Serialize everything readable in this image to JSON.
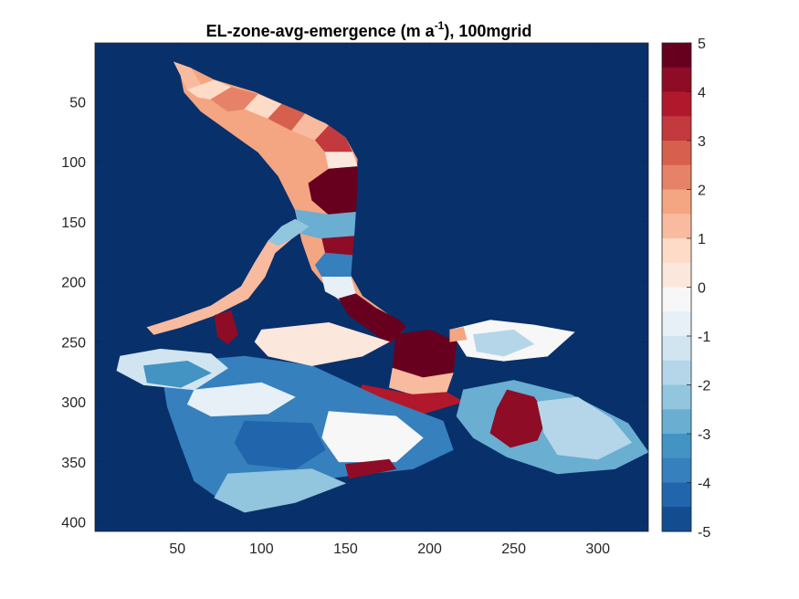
{
  "chart_data": {
    "type": "heatmap",
    "title": {
      "main": "EL-zone-avg-emergence (m a",
      "superscript": "-1",
      "suffix": "), 100mgrid"
    },
    "xlabel": "",
    "ylabel": "",
    "xlim": [
      1,
      330
    ],
    "ylim": [
      408,
      1
    ],
    "y_direction": "reverse",
    "x_ticks": [
      50,
      100,
      150,
      200,
      250,
      300
    ],
    "x_tick_labels": [
      "50",
      "100",
      "150",
      "200",
      "250",
      "300"
    ],
    "y_ticks": [
      50,
      100,
      150,
      200,
      250,
      300,
      350,
      400
    ],
    "y_tick_labels": [
      "50",
      "100",
      "150",
      "200",
      "250",
      "300",
      "350",
      "400"
    ],
    "background_value": -5,
    "colorbar": {
      "min": -5,
      "max": 5,
      "levels": 20,
      "ticks": [
        5,
        4,
        3,
        2,
        1,
        0,
        -1,
        -2,
        -3,
        -4,
        -5
      ],
      "tick_labels": [
        "5",
        "4",
        "3",
        "2",
        "1",
        "0",
        "-1",
        "-2",
        "-3",
        "-4",
        "-5"
      ],
      "colors": [
        "#08306b",
        "#134c8f",
        "#2166ac",
        "#3680bd",
        "#4393c3",
        "#6aaed2",
        "#92c5de",
        "#b5d6e8",
        "#d1e5f0",
        "#e6f0f6",
        "#f7f7f7",
        "#fbe7dc",
        "#fddbc7",
        "#f8bb9f",
        "#f4a582",
        "#e58267",
        "#d6604d",
        "#c2393e",
        "#b2182b",
        "#8e0c25",
        "#67001f"
      ]
    },
    "zones": [
      {
        "name": "upper-accumulation",
        "value": 2.0,
        "points": [
          [
            48,
            17
          ],
          [
            58,
            22
          ],
          [
            72,
            32
          ],
          [
            96,
            42
          ],
          [
            118,
            56
          ],
          [
            138,
            68
          ],
          [
            150,
            80
          ],
          [
            157,
            98
          ],
          [
            156,
            118
          ],
          [
            155,
            142
          ],
          [
            154,
            168
          ],
          [
            152,
            192
          ],
          [
            160,
            212
          ],
          [
            176,
            228
          ],
          [
            186,
            238
          ],
          [
            176,
            252
          ],
          [
            158,
            230
          ],
          [
            142,
            210
          ],
          [
            130,
            190
          ],
          [
            124,
            166
          ],
          [
            120,
            140
          ],
          [
            110,
            112
          ],
          [
            98,
            92
          ],
          [
            80,
            74
          ],
          [
            64,
            58
          ],
          [
            54,
            42
          ],
          [
            52,
            28
          ]
        ]
      },
      {
        "name": "upper-band-1",
        "value": 1.5,
        "points": [
          [
            48,
            17
          ],
          [
            58,
            22
          ],
          [
            64,
            36
          ],
          [
            56,
            40
          ],
          [
            52,
            28
          ]
        ]
      },
      {
        "name": "upper-band-2",
        "value": 1.2,
        "points": [
          [
            56,
            40
          ],
          [
            72,
            32
          ],
          [
            82,
            38
          ],
          [
            70,
            48
          ],
          [
            62,
            46
          ]
        ]
      },
      {
        "name": "upper-band-3",
        "value": 2.5,
        "points": [
          [
            70,
            48
          ],
          [
            82,
            38
          ],
          [
            98,
            44
          ],
          [
            90,
            56
          ],
          [
            80,
            58
          ]
        ]
      },
      {
        "name": "upper-band-4",
        "value": 1.0,
        "points": [
          [
            90,
            56
          ],
          [
            98,
            44
          ],
          [
            112,
            52
          ],
          [
            104,
            64
          ]
        ]
      },
      {
        "name": "upper-band-5",
        "value": 3.0,
        "points": [
          [
            104,
            64
          ],
          [
            112,
            52
          ],
          [
            126,
            60
          ],
          [
            118,
            74
          ]
        ]
      },
      {
        "name": "upper-band-6",
        "value": 1.5,
        "points": [
          [
            118,
            74
          ],
          [
            126,
            60
          ],
          [
            140,
            70
          ],
          [
            132,
            82
          ]
        ]
      },
      {
        "name": "upper-band-7",
        "value": 3.5,
        "points": [
          [
            132,
            82
          ],
          [
            140,
            70
          ],
          [
            150,
            80
          ],
          [
            154,
            92
          ],
          [
            138,
            92
          ]
        ]
      },
      {
        "name": "upper-band-8",
        "value": 0.5,
        "points": [
          [
            138,
            92
          ],
          [
            154,
            92
          ],
          [
            157,
            104
          ],
          [
            140,
            106
          ]
        ]
      },
      {
        "name": "trunk-red",
        "value": 5.0,
        "points": [
          [
            140,
            106
          ],
          [
            157,
            104
          ],
          [
            157,
            120
          ],
          [
            156,
            142
          ],
          [
            140,
            144
          ],
          [
            130,
            132
          ],
          [
            128,
            118
          ]
        ]
      },
      {
        "name": "trunk-blue-1",
        "value": -2.5,
        "points": [
          [
            120,
            140
          ],
          [
            140,
            144
          ],
          [
            156,
            142
          ],
          [
            155,
            162
          ],
          [
            136,
            164
          ],
          [
            124,
            160
          ]
        ]
      },
      {
        "name": "trunk-band-red",
        "value": 4.5,
        "points": [
          [
            136,
            164
          ],
          [
            155,
            162
          ],
          [
            154,
            178
          ],
          [
            138,
            176
          ]
        ]
      },
      {
        "name": "trunk-blue-2",
        "value": -3.5,
        "points": [
          [
            138,
            176
          ],
          [
            154,
            178
          ],
          [
            153,
            196
          ],
          [
            136,
            196
          ],
          [
            132,
            186
          ]
        ]
      },
      {
        "name": "trunk-light",
        "value": -0.5,
        "points": [
          [
            136,
            196
          ],
          [
            153,
            196
          ],
          [
            156,
            210
          ],
          [
            146,
            214
          ],
          [
            138,
            208
          ]
        ]
      },
      {
        "name": "snout-red",
        "value": 5.0,
        "points": [
          [
            146,
            214
          ],
          [
            156,
            210
          ],
          [
            168,
            222
          ],
          [
            182,
            232
          ],
          [
            186,
            238
          ],
          [
            176,
            252
          ],
          [
            164,
            240
          ],
          [
            152,
            228
          ]
        ]
      },
      {
        "name": "west-arm",
        "value": 1.5,
        "points": [
          [
            120,
            148
          ],
          [
            128,
            154
          ],
          [
            118,
            164
          ],
          [
            108,
            176
          ],
          [
            102,
            196
          ],
          [
            92,
            214
          ],
          [
            72,
            228
          ],
          [
            52,
            238
          ],
          [
            36,
            244
          ],
          [
            32,
            238
          ],
          [
            50,
            230
          ],
          [
            70,
            220
          ],
          [
            88,
            204
          ],
          [
            96,
            184
          ],
          [
            104,
            166
          ],
          [
            112,
            154
          ]
        ]
      },
      {
        "name": "west-arm-blue",
        "value": -2.0,
        "points": [
          [
            104,
            166
          ],
          [
            112,
            154
          ],
          [
            120,
            148
          ],
          [
            128,
            154
          ],
          [
            118,
            164
          ],
          [
            110,
            170
          ]
        ]
      },
      {
        "name": "west-arm-red",
        "value": 4.5,
        "points": [
          [
            72,
            228
          ],
          [
            82,
            224
          ],
          [
            86,
            244
          ],
          [
            80,
            252
          ],
          [
            74,
            246
          ]
        ]
      },
      {
        "name": "confluence-red",
        "value": 5.0,
        "points": [
          [
            180,
            244
          ],
          [
            200,
            240
          ],
          [
            216,
            250
          ],
          [
            214,
            276
          ],
          [
            196,
            280
          ],
          [
            178,
            272
          ]
        ]
      },
      {
        "name": "confluence-pink",
        "value": 1.5,
        "points": [
          [
            178,
            272
          ],
          [
            196,
            280
          ],
          [
            214,
            276
          ],
          [
            210,
            292
          ],
          [
            190,
            294
          ],
          [
            176,
            288
          ]
        ]
      },
      {
        "name": "lower-red",
        "value": 4.0,
        "points": [
          [
            160,
            286
          ],
          [
            190,
            294
          ],
          [
            210,
            292
          ],
          [
            220,
            300
          ],
          [
            196,
            310
          ],
          [
            168,
            308
          ],
          [
            156,
            298
          ]
        ]
      },
      {
        "name": "east-lobe",
        "value": -2.5,
        "points": [
          [
            220,
            290
          ],
          [
            250,
            282
          ],
          [
            284,
            294
          ],
          [
            318,
            318
          ],
          [
            330,
            342
          ],
          [
            310,
            356
          ],
          [
            276,
            360
          ],
          [
            246,
            346
          ],
          [
            226,
            330
          ],
          [
            216,
            312
          ]
        ]
      },
      {
        "name": "east-red",
        "value": 4.5,
        "points": [
          [
            246,
            290
          ],
          [
            262,
            296
          ],
          [
            270,
            312
          ],
          [
            264,
            332
          ],
          [
            248,
            338
          ],
          [
            236,
            326
          ],
          [
            240,
            306
          ]
        ]
      },
      {
        "name": "east-lightblue",
        "value": -1.5,
        "points": [
          [
            264,
            300
          ],
          [
            288,
            296
          ],
          [
            308,
            314
          ],
          [
            320,
            334
          ],
          [
            300,
            348
          ],
          [
            276,
            344
          ],
          [
            268,
            326
          ]
        ]
      },
      {
        "name": "lower-tongue",
        "value": -3.5,
        "points": [
          [
            40,
            268
          ],
          [
            90,
            262
          ],
          [
            130,
            270
          ],
          [
            170,
            296
          ],
          [
            208,
            316
          ],
          [
            214,
            340
          ],
          [
            190,
            356
          ],
          [
            150,
            362
          ],
          [
            110,
            370
          ],
          [
            74,
            380
          ],
          [
            60,
            366
          ],
          [
            52,
            336
          ],
          [
            44,
            304
          ]
        ]
      },
      {
        "name": "lower-white-1",
        "value": 0.0,
        "points": [
          [
            140,
            308
          ],
          [
            180,
            312
          ],
          [
            196,
            330
          ],
          [
            180,
            350
          ],
          [
            146,
            350
          ],
          [
            136,
            330
          ]
        ]
      },
      {
        "name": "lower-blue-deep",
        "value": -4.0,
        "points": [
          [
            90,
            316
          ],
          [
            130,
            318
          ],
          [
            138,
            340
          ],
          [
            120,
            356
          ],
          [
            92,
            352
          ],
          [
            84,
            334
          ]
        ]
      },
      {
        "name": "lower-white-2",
        "value": -0.5,
        "points": [
          [
            60,
            290
          ],
          [
            100,
            284
          ],
          [
            120,
            296
          ],
          [
            104,
            310
          ],
          [
            70,
            312
          ],
          [
            56,
            302
          ]
        ]
      },
      {
        "name": "south-band-1",
        "value": -2.0,
        "points": [
          [
            80,
            360
          ],
          [
            130,
            356
          ],
          [
            150,
            368
          ],
          [
            120,
            384
          ],
          [
            90,
            392
          ],
          [
            72,
            380
          ]
        ]
      },
      {
        "name": "south-red",
        "value": 4.5,
        "points": [
          [
            150,
            352
          ],
          [
            176,
            348
          ],
          [
            180,
            356
          ],
          [
            152,
            364
          ]
        ]
      },
      {
        "name": "west-lobe",
        "value": -1.0,
        "points": [
          [
            16,
            262
          ],
          [
            40,
            256
          ],
          [
            70,
            260
          ],
          [
            80,
            272
          ],
          [
            60,
            290
          ],
          [
            30,
            286
          ],
          [
            14,
            274
          ]
        ]
      },
      {
        "name": "west-lobe-blue",
        "value": -3.0,
        "points": [
          [
            30,
            270
          ],
          [
            56,
            266
          ],
          [
            70,
            276
          ],
          [
            52,
            288
          ],
          [
            32,
            284
          ]
        ]
      },
      {
        "name": "northeast-lobe",
        "value": 0.0,
        "points": [
          [
            212,
            240
          ],
          [
            236,
            232
          ],
          [
            262,
            236
          ],
          [
            286,
            242
          ],
          [
            270,
            262
          ],
          [
            244,
            266
          ],
          [
            222,
            262
          ]
        ]
      },
      {
        "name": "northeast-blue",
        "value": -1.5,
        "points": [
          [
            226,
            244
          ],
          [
            250,
            240
          ],
          [
            262,
            252
          ],
          [
            244,
            262
          ],
          [
            228,
            258
          ]
        ]
      },
      {
        "name": "northeast-pink",
        "value": 2.0,
        "points": [
          [
            212,
            240
          ],
          [
            220,
            238
          ],
          [
            222,
            248
          ],
          [
            212,
            250
          ]
        ]
      },
      {
        "name": "central-white",
        "value": 0.5,
        "points": [
          [
            100,
            240
          ],
          [
            140,
            234
          ],
          [
            176,
            250
          ],
          [
            160,
            262
          ],
          [
            130,
            270
          ],
          [
            104,
            262
          ],
          [
            96,
            250
          ]
        ]
      }
    ]
  }
}
